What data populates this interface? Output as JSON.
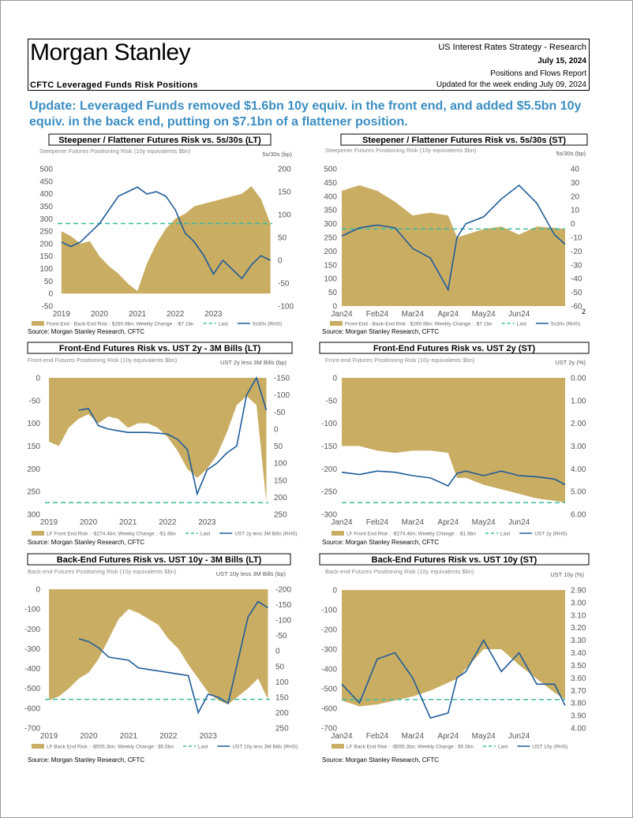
{
  "header": {
    "brand": "Morgan Stanley",
    "series": "US Interest Rates Strategy - Research",
    "date": "July 15, 2024",
    "report": "Positions and Flows Report",
    "updated": "Updated for the week ending July 09, 2024",
    "section": "CFTC Leveraged Funds Risk Positions"
  },
  "headline": "Update: Leveraged Funds removed $1.6bn 10y equiv. in the front end, and added $5.5bn 10y equiv. in the back end, putting on $7.1bn of a flattener position.",
  "page_number": "2",
  "chart_data": [
    {
      "type": "area-line",
      "title": "Steepener / Flattener Futures Risk vs. 5s/30s (LT)",
      "subtitle": "Steepener Futures Positioning Risk (10y equivalents $bn)",
      "y2_label": "5s/30s (bp)",
      "source": "Source: Morgan Stanley Research, CFTC",
      "x": [
        2019,
        2019.25,
        2019.5,
        2019.75,
        2020,
        2020.25,
        2020.5,
        2020.75,
        2021,
        2021.25,
        2021.5,
        2021.75,
        2022,
        2022.25,
        2022.5,
        2022.75,
        2023,
        2023.25,
        2023.5,
        2023.75,
        2024,
        2024.25,
        2024.5
      ],
      "xlim": [
        2018.9,
        2024.55
      ],
      "xticks": [
        2019,
        2020,
        2021,
        2022,
        2023
      ],
      "ylim": [
        -50,
        500
      ],
      "yticks": [
        -50,
        0,
        50,
        100,
        150,
        200,
        250,
        300,
        350,
        400,
        450,
        500
      ],
      "y2lim": [
        -100,
        200
      ],
      "y2ticks": [
        -100,
        -50,
        0,
        50,
        100,
        150,
        200
      ],
      "series": [
        {
          "name": "Front-End - Back-End Risk : $280.9bn; Weekly Change : -$7.1bn",
          "kind": "area",
          "color": "#c9ad63",
          "values": [
            250,
            230,
            200,
            210,
            150,
            110,
            80,
            40,
            10,
            120,
            200,
            260,
            300,
            320,
            350,
            360,
            370,
            380,
            390,
            400,
            430,
            380,
            280.9
          ]
        },
        {
          "name": "Last",
          "kind": "last",
          "color": "#3dbb9f",
          "value": 280.9
        },
        {
          "name": "5s30s (RHS)",
          "kind": "line",
          "axis": "y2",
          "color": "#1f5c99",
          "values": [
            40,
            30,
            40,
            60,
            80,
            110,
            140,
            150,
            160,
            145,
            150,
            140,
            110,
            60,
            40,
            10,
            -30,
            0,
            -20,
            -40,
            -10,
            10,
            0
          ]
        }
      ]
    },
    {
      "type": "area-line",
      "title": "Steepener / Flattener Futures Risk vs. 5s/30s (ST)",
      "subtitle": "Steepener Futures Positioning Risk (10y equivalents $bn)",
      "y2_label": "5s/30s (bp)",
      "source": "Source: Morgan Stanley Research, CFTC",
      "x": [
        0,
        0.5,
        1,
        1.5,
        2,
        2.5,
        3,
        3.25,
        3.5,
        4,
        4.5,
        5,
        5.5,
        6,
        6.3
      ],
      "xlim": [
        0,
        6.3
      ],
      "xticks": [
        {
          "value": 0,
          "label": "Jan24"
        },
        {
          "value": 1,
          "label": "Feb24"
        },
        {
          "value": 2,
          "label": "Mar24"
        },
        {
          "value": 3,
          "label": "Apr24"
        },
        {
          "value": 4,
          "label": "May24"
        },
        {
          "value": 5,
          "label": "Jun24"
        }
      ],
      "ylim": [
        0,
        500
      ],
      "yticks": [
        0,
        50,
        100,
        150,
        200,
        250,
        300,
        350,
        400,
        450,
        500
      ],
      "y2lim": [
        -60,
        40
      ],
      "y2ticks": [
        -60,
        -50,
        -40,
        -30,
        -20,
        -10,
        0,
        10,
        20,
        30,
        40
      ],
      "series": [
        {
          "name": "Front-End - Back-End Risk : $280.9bn; Weekly Change : -$7.1bn",
          "kind": "area",
          "color": "#c9ad63",
          "values": [
            420,
            440,
            420,
            380,
            330,
            340,
            330,
            250,
            260,
            280,
            290,
            260,
            290,
            285,
            280.9
          ]
        },
        {
          "name": "Last",
          "kind": "last",
          "color": "#3dbb9f",
          "value": 280.9
        },
        {
          "name": "5s30s (RHS)",
          "kind": "line",
          "axis": "y2",
          "color": "#1f5c99",
          "values": [
            -9,
            -3,
            -1,
            -3,
            -18,
            -25,
            -48,
            -10,
            0,
            5,
            18,
            28,
            15,
            -8,
            -15
          ]
        }
      ]
    },
    {
      "type": "area-line",
      "title": "Front-End Futures Risk vs. UST 2y - 3M Bills (LT)",
      "subtitle": "Front-end Futures Positioning Risk (10y equivalents $bn)",
      "y2_label": "UST 2y less 3M Bills (bp)",
      "source": "Source: Morgan Stanley Research, CFTC",
      "x": [
        2019,
        2019.25,
        2019.5,
        2019.75,
        2020,
        2020.25,
        2020.5,
        2020.75,
        2021,
        2021.25,
        2021.5,
        2021.75,
        2022,
        2022.25,
        2022.5,
        2022.75,
        2023,
        2023.25,
        2023.5,
        2023.75,
        2024,
        2024.25,
        2024.5
      ],
      "xlim": [
        2018.9,
        2024.55
      ],
      "xticks": [
        2019,
        2020,
        2021,
        2022,
        2023
      ],
      "ylim": [
        -300,
        0
      ],
      "yticks": [
        0,
        -50,
        {
          "value": -100,
          "label": "100"
        },
        {
          "value": -150,
          "label": "150"
        },
        {
          "value": -200,
          "label": "200"
        },
        {
          "value": -250,
          "label": "250"
        },
        {
          "value": -300,
          "label": "300"
        }
      ],
      "y2lim": [
        250,
        -150
      ],
      "y2ticks": [
        -150,
        -100,
        -50,
        0,
        50,
        100,
        150,
        200,
        250
      ],
      "series": [
        {
          "name": "LF Front End Risk : -$274.4bn; Weekly Change : -$1.6bn",
          "kind": "area",
          "color": "#c9ad63",
          "values": [
            -140,
            -150,
            -110,
            -90,
            -80,
            -100,
            -85,
            -90,
            -110,
            -100,
            -100,
            -110,
            -130,
            -160,
            -200,
            -220,
            -200,
            -170,
            -120,
            -60,
            -40,
            -60,
            -274.4
          ]
        },
        {
          "name": "Last",
          "kind": "last",
          "color": "#3dbb9f",
          "value": -274.4
        },
        {
          "name": "UST 2y less 3M Bills (RHS)",
          "kind": "line",
          "axis": "y2",
          "color": "#1f5c99",
          "values": [
            null,
            null,
            null,
            -55,
            -60,
            -10,
            0,
            5,
            10,
            10,
            10,
            12,
            15,
            30,
            60,
            190,
            120,
            100,
            70,
            50,
            -100,
            -150,
            -55
          ]
        }
      ]
    },
    {
      "type": "area-line",
      "title": "Front-End Futures Risk vs. UST 2y (ST)",
      "subtitle": "Front-end Futures Positioning Risk (10y equivalents $bn)",
      "y2_label": "UST 2y (%)",
      "source": "Source: Morgan Stanley Research, CFTC",
      "x": [
        0,
        0.5,
        1,
        1.5,
        2,
        2.5,
        3,
        3.25,
        3.5,
        4,
        4.5,
        5,
        5.5,
        6,
        6.3
      ],
      "xlim": [
        0,
        6.3
      ],
      "xticks": [
        {
          "value": 0,
          "label": "Jan24"
        },
        {
          "value": 1,
          "label": "Feb24"
        },
        {
          "value": 2,
          "label": "Mar24"
        },
        {
          "value": 3,
          "label": "Apr24"
        },
        {
          "value": 4,
          "label": "May24"
        },
        {
          "value": 5,
          "label": "Jun24"
        }
      ],
      "ylim": [
        -300,
        0
      ],
      "yticks": [
        0,
        -50,
        -100,
        -150,
        -200,
        -250,
        -300
      ],
      "y2lim": [
        6,
        0
      ],
      "y2ticks": [
        {
          "value": 0,
          "label": "0.00"
        },
        {
          "value": 1,
          "label": "1.00"
        },
        {
          "value": 2,
          "label": "2.00"
        },
        {
          "value": 3,
          "label": "3.00"
        },
        {
          "value": 4,
          "label": "4.00"
        },
        {
          "value": 5,
          "label": "5.00"
        },
        {
          "value": 6,
          "label": "6.00"
        }
      ],
      "series": [
        {
          "name": "LF Front End Risk : -$274.4bn; Weekly Change : -$1.6bn",
          "kind": "area",
          "color": "#c9ad63",
          "values": [
            -150,
            -150,
            -160,
            -165,
            -160,
            -160,
            -165,
            -220,
            -220,
            -235,
            -245,
            -255,
            -265,
            -270,
            -274.4
          ]
        },
        {
          "name": "Last",
          "kind": "last",
          "color": "#3dbb9f",
          "value": -274.4
        },
        {
          "name": "UST 2y (RHS)",
          "kind": "line",
          "axis": "y2",
          "color": "#1f5c99",
          "values": [
            4.15,
            4.25,
            4.1,
            4.15,
            4.3,
            4.4,
            4.75,
            4.2,
            4.1,
            4.3,
            4.1,
            4.3,
            4.35,
            4.45,
            4.7
          ]
        }
      ]
    },
    {
      "type": "area-line",
      "title": "Back-End Futures Risk vs. UST 10y - 3M Bills (LT)",
      "subtitle": "Back-end Futures Positioning Risk (10y equivalents $bn)",
      "y2_label": "UST 10y less 3M Bills (bp)",
      "source": "Source: Morgan Stanley Research, CFTC",
      "x": [
        2019,
        2019.25,
        2019.5,
        2019.75,
        2020,
        2020.25,
        2020.5,
        2020.75,
        2021,
        2021.25,
        2021.5,
        2021.75,
        2022,
        2022.25,
        2022.5,
        2022.75,
        2023,
        2023.25,
        2023.5,
        2023.75,
        2024,
        2024.25,
        2024.5
      ],
      "xlim": [
        2018.9,
        2024.55
      ],
      "xticks": [
        2019,
        2020,
        2021,
        2022,
        2023
      ],
      "ylim": [
        -700,
        0
      ],
      "yticks": [
        0,
        -100,
        -200,
        -300,
        -400,
        -500,
        -600,
        -700
      ],
      "y2lim": [
        250,
        -200
      ],
      "y2ticks": [
        -200,
        -150,
        -100,
        -50,
        0,
        50,
        100,
        150,
        200,
        250
      ],
      "series": [
        {
          "name": "LF Back End Risk : -$555.3bn; Weekly Change : $5.5bn",
          "kind": "area",
          "color": "#c9ad63",
          "values": [
            -560,
            -540,
            -500,
            -450,
            -420,
            -350,
            -250,
            -150,
            -100,
            -120,
            -150,
            -180,
            -250,
            -300,
            -380,
            -450,
            -520,
            -560,
            -580,
            -540,
            -500,
            -450,
            -555.3
          ]
        },
        {
          "name": "Last",
          "kind": "last",
          "color": "#3dbb9f",
          "value": -555.3
        },
        {
          "name": "UST 10y less 3M Bills (RHS)",
          "kind": "line",
          "axis": "y2",
          "color": "#1f5c99",
          "values": [
            null,
            null,
            null,
            -40,
            -30,
            -10,
            20,
            25,
            30,
            55,
            60,
            65,
            70,
            75,
            80,
            200,
            140,
            150,
            170,
            30,
            -110,
            -160,
            -140
          ]
        }
      ]
    },
    {
      "type": "area-line",
      "title": "Back-End Futures Risk vs. UST 10y (ST)",
      "subtitle": "Back-end Futures Positioning Risk (10y equivalents $bn)",
      "y2_label": "UST 10y (%)",
      "source": "Source: Morgan Stanley Research, CFTC",
      "x": [
        0,
        0.5,
        1,
        1.5,
        2,
        2.5,
        3,
        3.25,
        3.5,
        4,
        4.5,
        5,
        5.5,
        6,
        6.3
      ],
      "xlim": [
        0,
        6.3
      ],
      "xticks": [
        {
          "value": 0,
          "label": "Jan24"
        },
        {
          "value": 1,
          "label": "Feb24"
        },
        {
          "value": 2,
          "label": "Mar24"
        },
        {
          "value": 3,
          "label": "Apr24"
        },
        {
          "value": 4,
          "label": "May24"
        },
        {
          "value": 5,
          "label": "Jun24"
        }
      ],
      "ylim": [
        -700,
        0
      ],
      "yticks": [
        0,
        -100,
        -200,
        -300,
        -400,
        -500,
        -600,
        -700
      ],
      "y2lim": [
        4,
        2.9
      ],
      "y2ticks": [
        {
          "value": 2.9,
          "label": "2.90"
        },
        {
          "value": 3,
          "label": "3.00"
        },
        {
          "value": 3.1,
          "label": "3.10"
        },
        {
          "value": 3.2,
          "label": "3.20"
        },
        {
          "value": 3.3,
          "label": "3.30"
        },
        {
          "value": 3.4,
          "label": "3.40"
        },
        {
          "value": 3.5,
          "label": "3.50"
        },
        {
          "value": 3.6,
          "label": "3.60"
        },
        {
          "value": 3.7,
          "label": "3.70"
        },
        {
          "value": 3.8,
          "label": "3.80"
        },
        {
          "value": 3.9,
          "label": "3.90"
        },
        {
          "value": 4,
          "label": "4.00"
        }
      ],
      "series": [
        {
          "name": "LF Back End Risk : -$555.3bn; Weekly Change : $5.5bn",
          "kind": "area",
          "color": "#c9ad63",
          "values": [
            -560,
            -590,
            -580,
            -560,
            -540,
            -510,
            -470,
            -450,
            -400,
            -300,
            -300,
            -380,
            -450,
            -520,
            -555.3
          ]
        },
        {
          "name": "Last",
          "kind": "last",
          "color": "#3dbb9f",
          "value": -555.3
        },
        {
          "name": "UST 10y (RHS)",
          "kind": "line",
          "axis": "y2",
          "color": "#1f5c99",
          "values": [
            3.65,
            3.8,
            3.45,
            3.4,
            3.6,
            3.92,
            3.88,
            3.6,
            3.55,
            3.3,
            3.55,
            3.4,
            3.65,
            3.65,
            3.82
          ]
        }
      ]
    }
  ]
}
